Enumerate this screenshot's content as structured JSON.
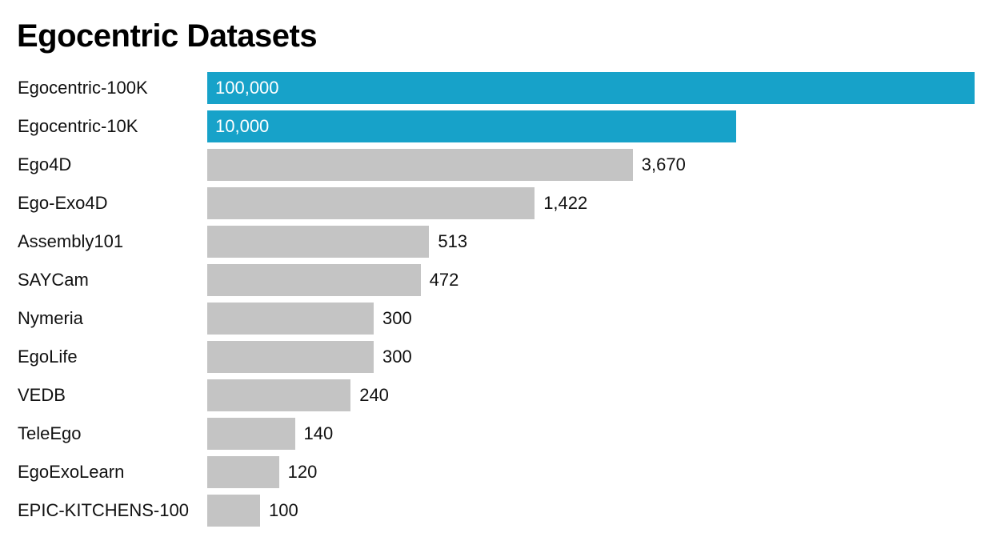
{
  "chart_data": {
    "type": "bar",
    "orientation": "horizontal",
    "title": "Egocentric Datasets",
    "xlabel": "",
    "ylabel": "",
    "scale": "log",
    "xlim": [
      60,
      100000
    ],
    "grid": false,
    "legend": "none",
    "categories": [
      "Egocentric-100K",
      "Egocentric-10K",
      "Ego4D",
      "Ego-Exo4D",
      "Assembly101",
      "SAYCam",
      "Nymeria",
      "EgoLife",
      "VEDB",
      "TeleEgo",
      "EgoExoLearn",
      "EPIC-KITCHENS-100"
    ],
    "values": [
      100000,
      10000,
      3670,
      1422,
      513,
      472,
      300,
      300,
      240,
      140,
      120,
      100
    ],
    "value_labels": [
      "100,000",
      "10,000",
      "3,670",
      "1,422",
      "513",
      "472",
      "300",
      "300",
      "240",
      "140",
      "120",
      "100"
    ],
    "highlighted": [
      "Egocentric-100K",
      "Egocentric-10K"
    ],
    "colors": {
      "highlight": "#17a2c9",
      "default": "#c4c4c4"
    }
  }
}
